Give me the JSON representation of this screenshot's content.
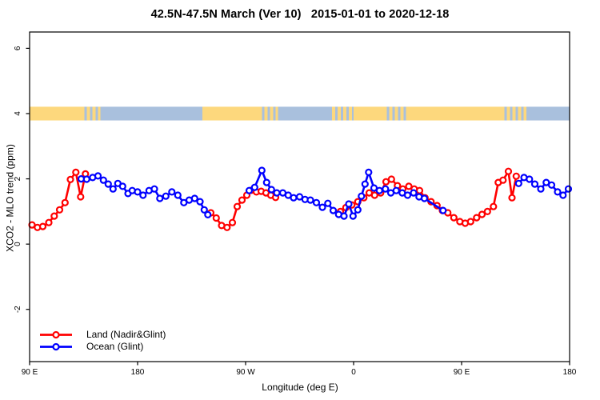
{
  "title": "42.5N-47.5N March (Ver 10)   2015-01-01 to 2020-12-18",
  "legend": {
    "entries": [
      {
        "id": "land",
        "label": "Land (Nadir&Glint)",
        "color": "#ff0000"
      },
      {
        "id": "ocean",
        "label": "Ocean (Glint)",
        "color": "#0000ff"
      }
    ]
  },
  "chart_data": {
    "type": "line",
    "title": "42.5N-47.5N March (Ver 10)   2015-01-01 to 2020-12-18",
    "xlabel": "Longitude (deg E)",
    "ylabel": "XCO2 - MLO trend (ppm)",
    "xlim": [
      90,
      540
    ],
    "ylim": [
      -3.6,
      6.5
    ],
    "grid": false,
    "legend_position": "bottom-left-inside",
    "x_ticks": [
      {
        "value": 90,
        "label": "90 E"
      },
      {
        "value": 180,
        "label": "180"
      },
      {
        "value": 270,
        "label": "90 W"
      },
      {
        "value": 360,
        "label": "0"
      },
      {
        "value": 450,
        "label": "90 E"
      },
      {
        "value": 540,
        "label": "180"
      }
    ],
    "y_ticks": [
      {
        "value": -2,
        "label": "-2"
      },
      {
        "value": 0,
        "label": "0"
      },
      {
        "value": 2,
        "label": "2"
      },
      {
        "value": 4,
        "label": "4"
      },
      {
        "value": 6,
        "label": "6"
      }
    ],
    "surface_band": {
      "description": "land/ocean mask strip drawn at y = 4 ppm",
      "value": 4.0,
      "half_height": 0.21,
      "land_color": "#fdd87d",
      "ocean_color": "#a9c0dd",
      "segments": [
        {
          "from": 90,
          "to": 133,
          "type": "land"
        },
        {
          "from": 133,
          "to": 149,
          "type": "mixed"
        },
        {
          "from": 149,
          "to": 234,
          "type": "ocean"
        },
        {
          "from": 234,
          "to": 281,
          "type": "land"
        },
        {
          "from": 281,
          "to": 297,
          "type": "mixed"
        },
        {
          "from": 297,
          "to": 342,
          "type": "ocean"
        },
        {
          "from": 342,
          "to": 360,
          "type": "mixed"
        },
        {
          "from": 360,
          "to": 385,
          "type": "land"
        },
        {
          "from": 385,
          "to": 405,
          "type": "mixed"
        },
        {
          "from": 405,
          "to": 483,
          "type": "land"
        },
        {
          "from": 483,
          "to": 504,
          "type": "mixed"
        },
        {
          "from": 504,
          "to": 540,
          "type": "ocean"
        }
      ]
    },
    "series": [
      {
        "name": "Land (Nadir&Glint)",
        "color": "#ff0000",
        "marker": "open-circle",
        "segments": [
          [
            [
              92,
              0.59
            ],
            [
              96.5,
              0.51
            ],
            [
              101,
              0.54
            ],
            [
              106,
              0.66
            ],
            [
              110.5,
              0.86
            ],
            [
              115,
              1.05
            ],
            [
              119.5,
              1.27
            ],
            [
              124,
              1.98
            ],
            [
              128.5,
              2.2
            ],
            [
              132.5,
              1.45
            ],
            [
              136.5,
              2.15
            ]
          ],
          [
            [
              241,
              0.96
            ],
            [
              245.5,
              0.8
            ],
            [
              250,
              0.57
            ],
            [
              254.5,
              0.51
            ],
            [
              259,
              0.66
            ],
            [
              263,
              1.15
            ],
            [
              267,
              1.35
            ],
            [
              271,
              1.5
            ],
            [
              275,
              1.65
            ],
            [
              279,
              1.6
            ],
            [
              283,
              1.62
            ],
            [
              287,
              1.57
            ],
            [
              291,
              1.5
            ],
            [
              295,
              1.43
            ]
          ],
          [
            [
              349,
              1.0
            ],
            [
              353.5,
              1.12
            ],
            [
              358.5,
              1.2
            ],
            [
              363.5,
              1.3
            ],
            [
              368.5,
              1.42
            ],
            [
              373,
              1.57
            ],
            [
              377.5,
              1.5
            ],
            [
              382.5,
              1.57
            ],
            [
              387,
              1.91
            ],
            [
              391.5,
              1.99
            ],
            [
              396.5,
              1.79
            ],
            [
              401,
              1.69
            ],
            [
              406,
              1.77
            ],
            [
              410.5,
              1.69
            ],
            [
              415,
              1.64
            ],
            [
              419.5,
              1.42
            ],
            [
              424.5,
              1.3
            ],
            [
              429.5,
              1.18
            ],
            [
              434,
              1.03
            ],
            [
              438.5,
              0.96
            ],
            [
              443.5,
              0.81
            ],
            [
              448.5,
              0.69
            ],
            [
              453,
              0.64
            ],
            [
              457.5,
              0.69
            ],
            [
              462.5,
              0.81
            ],
            [
              467,
              0.91
            ],
            [
              471.5,
              1.0
            ],
            [
              476.5,
              1.15
            ],
            [
              480.5,
              1.89
            ],
            [
              484.5,
              1.96
            ],
            [
              489,
              2.23
            ],
            [
              492,
              1.42
            ],
            [
              495.5,
              2.08
            ]
          ]
        ]
      },
      {
        "name": "Ocean (Glint)",
        "color": "#0000ff",
        "marker": "open-circle",
        "segments": [
          [
            [
              133,
              2.0
            ],
            [
              137.5,
              1.99
            ],
            [
              142.5,
              2.04
            ],
            [
              147,
              2.09
            ],
            [
              151.5,
              1.96
            ],
            [
              155.5,
              1.84
            ],
            [
              159.5,
              1.69
            ],
            [
              163.5,
              1.86
            ],
            [
              167.5,
              1.77
            ],
            [
              172,
              1.55
            ],
            [
              175.5,
              1.64
            ],
            [
              180,
              1.6
            ],
            [
              184.5,
              1.5
            ],
            [
              189.5,
              1.64
            ],
            [
              194,
              1.69
            ],
            [
              198.5,
              1.4
            ],
            [
              203.5,
              1.47
            ],
            [
              208.5,
              1.6
            ],
            [
              213.5,
              1.5
            ],
            [
              218.5,
              1.27
            ],
            [
              223,
              1.35
            ],
            [
              227.5,
              1.4
            ],
            [
              232,
              1.3
            ],
            [
              235.5,
              1.05
            ],
            [
              238.5,
              0.9
            ]
          ],
          [
            [
              273,
              1.64
            ],
            [
              277.5,
              1.74
            ],
            [
              283.5,
              2.26
            ],
            [
              287.5,
              1.89
            ],
            [
              291.5,
              1.67
            ],
            [
              296,
              1.57
            ],
            [
              301,
              1.57
            ],
            [
              305.5,
              1.5
            ],
            [
              310,
              1.42
            ],
            [
              315,
              1.45
            ],
            [
              319.5,
              1.37
            ],
            [
              324,
              1.35
            ],
            [
              329,
              1.27
            ],
            [
              334,
              1.13
            ],
            [
              338.5,
              1.25
            ],
            [
              343,
              1.03
            ],
            [
              347.5,
              0.91
            ],
            [
              352,
              0.86
            ],
            [
              356,
              1.23
            ],
            [
              359.5,
              0.86
            ],
            [
              363.5,
              1.05
            ],
            [
              366.5,
              1.47
            ],
            [
              369.5,
              1.84
            ],
            [
              372.5,
              2.2
            ],
            [
              377,
              1.72
            ],
            [
              381.5,
              1.64
            ],
            [
              386.5,
              1.69
            ],
            [
              391,
              1.57
            ],
            [
              395.5,
              1.64
            ],
            [
              400.5,
              1.57
            ],
            [
              405,
              1.5
            ],
            [
              410,
              1.57
            ],
            [
              414.5,
              1.45
            ],
            [
              419,
              1.4
            ],
            [
              434.5,
              1.03
            ]
          ],
          [
            [
              497.5,
              1.86
            ],
            [
              502,
              2.04
            ],
            [
              506.5,
              1.99
            ],
            [
              511,
              1.84
            ],
            [
              516,
              1.69
            ],
            [
              520.5,
              1.89
            ],
            [
              525,
              1.81
            ],
            [
              530,
              1.6
            ],
            [
              534.5,
              1.5
            ],
            [
              539,
              1.69
            ]
          ]
        ]
      }
    ]
  }
}
